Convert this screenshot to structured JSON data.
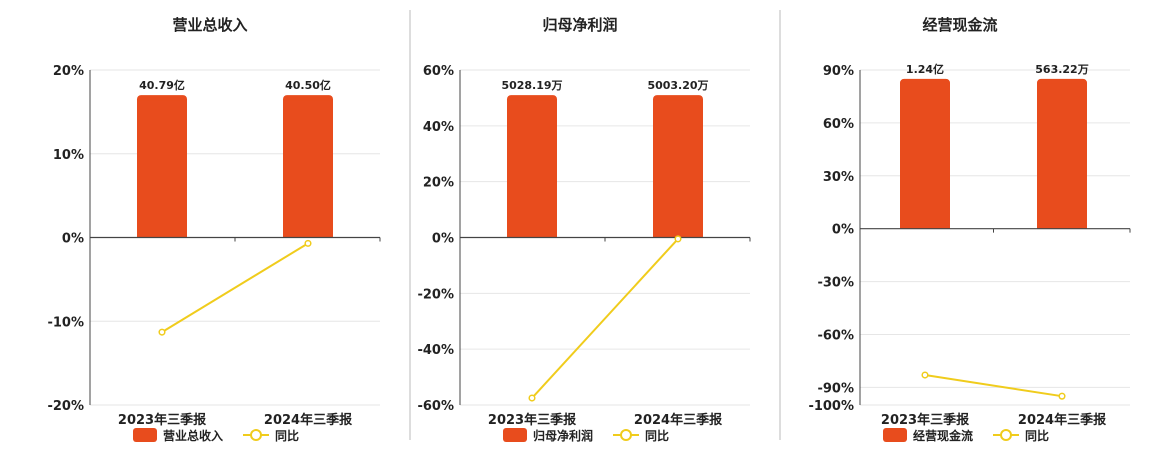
{
  "colors": {
    "bar": "#e84c1d",
    "line": "#f0cc1c",
    "grid": "#e6e6e6",
    "axis": "#444444",
    "divider": "#bbbbbb",
    "text": "#222222"
  },
  "legend": {
    "line_label": "同比"
  },
  "chart_data": [
    {
      "type": "bar",
      "title": "营业总收入",
      "categories": [
        "2023年三季报",
        "2024年三季报"
      ],
      "bar_series_name": "营业总收入",
      "bar_labels": [
        "40.79亿",
        "40.50亿"
      ],
      "bar_values": [
        4079000000,
        4050000000
      ],
      "yoy": [
        -11.3,
        -0.7
      ],
      "ylim": [
        -20,
        20
      ],
      "yticks": [
        20,
        10,
        0,
        -10,
        -20
      ],
      "ytick_labels": [
        "20%",
        "10%",
        "0%",
        "-10%",
        "-20%"
      ],
      "bar_top_pct": 17
    },
    {
      "type": "bar",
      "title": "归母净利润",
      "categories": [
        "2023年三季报",
        "2024年三季报"
      ],
      "bar_series_name": "归母净利润",
      "bar_labels": [
        "5028.19万",
        "5003.20万"
      ],
      "bar_values": [
        50281900,
        50032000
      ],
      "yoy": [
        -57.5,
        -0.5
      ],
      "ylim": [
        -60,
        60
      ],
      "yticks": [
        60,
        40,
        20,
        0,
        -20,
        -40,
        -60
      ],
      "ytick_labels": [
        "60%",
        "40%",
        "20%",
        "0%",
        "-20%",
        "-40%",
        "-60%"
      ],
      "bar_top_pct": 51
    },
    {
      "type": "bar",
      "title": "经营现金流",
      "categories": [
        "2023年三季报",
        "2024年三季报"
      ],
      "bar_series_name": "经营现金流",
      "bar_labels": [
        "1.24亿",
        "563.22万"
      ],
      "bar_values": [
        124000000,
        5632200
      ],
      "yoy": [
        -83,
        -95
      ],
      "ylim": [
        -100,
        90
      ],
      "yticks": [
        90,
        60,
        30,
        0,
        -30,
        -60,
        -90,
        -100
      ],
      "ytick_labels": [
        "90%",
        "60%",
        "30%",
        "0%",
        "-30%",
        "-60%",
        "-90%",
        "-100%"
      ],
      "bar_top_pct": 85
    }
  ]
}
